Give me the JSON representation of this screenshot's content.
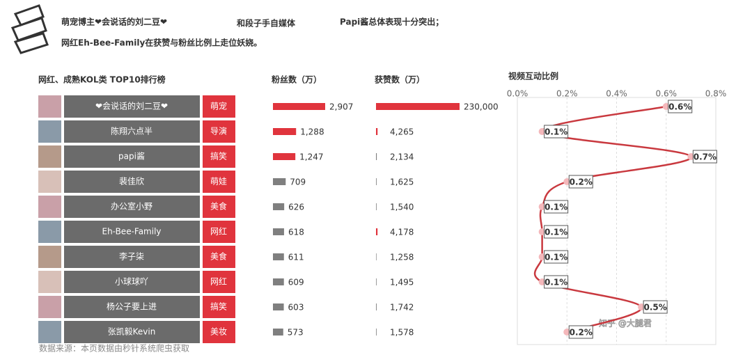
{
  "header": {
    "title_parts": [
      "萌宠博主❤会说话的刘二豆❤",
      "和段子手自媒体",
      "Papi酱总体表现十分突出；"
    ],
    "subtitle": "网红Eh-Bee-Family在获赞与粉丝比例上走位妖娆。"
  },
  "table": {
    "title": "网红、成熟KOL类 TOP10排行榜",
    "rows": [
      [
        "❤会说话的刘二豆❤",
        "萌宠"
      ],
      [
        "陈翔六点半",
        "导演"
      ],
      [
        "papi酱",
        "搞笑"
      ],
      [
        "裴佳欣",
        "萌娃"
      ],
      [
        "办公室小野",
        "美食"
      ],
      [
        "Eh-Bee-Family",
        "网红"
      ],
      [
        "李子柒",
        "美食"
      ],
      [
        "小球球吖",
        "网红"
      ],
      [
        "杨公子要上进",
        "搞笑"
      ],
      [
        "张凯毅Kevin",
        "美妆"
      ]
    ]
  },
  "chart_data": [
    {
      "type": "hbar",
      "title": "粉丝数（万）",
      "values": [
        2907,
        1288,
        1247,
        709,
        626,
        618,
        611,
        609,
        603,
        573
      ],
      "value_labels": [
        "2,907",
        "1,288",
        "1,247",
        "709",
        "626",
        "618",
        "611",
        "609",
        "603",
        "573"
      ],
      "colors": [
        "#e0343d",
        "#e0343d",
        "#e0343d",
        "#7f7f7f",
        "#7f7f7f",
        "#7f7f7f",
        "#7f7f7f",
        "#7f7f7f",
        "#7f7f7f",
        "#7f7f7f"
      ]
    },
    {
      "type": "hbar",
      "title": "获赞数（万）",
      "values": [
        230000,
        4265,
        2134,
        1625,
        1540,
        4178,
        1258,
        1495,
        1742,
        1578
      ],
      "value_labels": [
        "230,000",
        "4,265",
        "2,134",
        "1,625",
        "1,540",
        "4,178",
        "1,258",
        "1,495",
        "1,742",
        "1,578"
      ],
      "colors": [
        "#e0343d",
        "#e0343d",
        "#7f7f7f",
        "#7f7f7f",
        "#7f7f7f",
        "#e0343d",
        "#7f7f7f",
        "#7f7f7f",
        "#7f7f7f",
        "#7f7f7f"
      ]
    },
    {
      "type": "line",
      "title": "视频互动比例",
      "values": [
        0.6,
        0.1,
        0.7,
        0.2,
        0.1,
        0.1,
        0.1,
        0.1,
        0.5,
        0.2
      ],
      "value_labels": [
        "0.6%",
        "0.1%",
        "0.7%",
        "0.2%",
        "0.1%",
        "0.1%",
        "0.1%",
        "0.1%",
        "0.5%",
        "0.2%"
      ],
      "xlim": [
        0,
        0.8
      ],
      "xticks": [
        {
          "value": 0,
          "label": "0.0%"
        },
        {
          "value": 0.2,
          "label": "0.2%"
        },
        {
          "value": 0.4,
          "label": "0.4%"
        },
        {
          "value": 0.6,
          "label": "0.6%"
        },
        {
          "value": 0.8,
          "label": "0.8%"
        }
      ],
      "color": "#c9393f",
      "grid": true
    }
  ],
  "source": "数据来源：本页数据由秒针系统爬虫获取",
  "watermark": "知乎 @大腿君"
}
